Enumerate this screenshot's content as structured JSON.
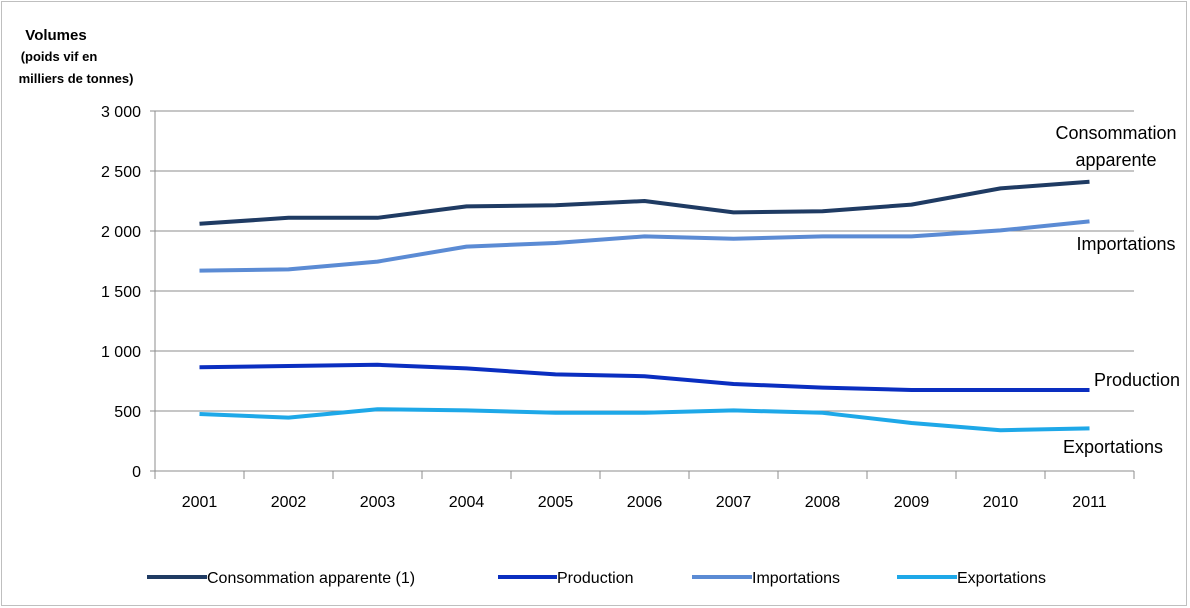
{
  "chart_data": {
    "type": "line",
    "ylabel_lines": [
      "Volumes",
      "(poids vif en",
      "milliers de tonnes)"
    ],
    "categories": [
      "2001",
      "2002",
      "2003",
      "2004",
      "2005",
      "2006",
      "2007",
      "2008",
      "2009",
      "2010",
      "2011"
    ],
    "ylim": [
      0,
      3000
    ],
    "yticks": [
      0,
      500,
      1000,
      1500,
      2000,
      2500,
      3000
    ],
    "ytick_labels": [
      "0",
      "500",
      "1 000",
      "1 500",
      "2 000",
      "2 500",
      "3 000"
    ],
    "grid": true,
    "legend_position": "bottom",
    "series": [
      {
        "name": "Consommation apparente (1)",
        "color": "#1f3b63",
        "values": [
          2060,
          2110,
          2110,
          2205,
          2215,
          2250,
          2155,
          2165,
          2220,
          2355,
          2410
        ]
      },
      {
        "name": "Production",
        "color": "#0a2ec0",
        "values": [
          865,
          875,
          885,
          855,
          805,
          790,
          725,
          695,
          675,
          675,
          675
        ]
      },
      {
        "name": "Importations",
        "color": "#5b8bd4",
        "values": [
          1670,
          1680,
          1745,
          1870,
          1900,
          1955,
          1935,
          1955,
          1955,
          2005,
          2080
        ]
      },
      {
        "name": "Exportations",
        "color": "#1ea8e8",
        "values": [
          475,
          445,
          515,
          505,
          485,
          485,
          505,
          485,
          400,
          340,
          355
        ]
      }
    ],
    "annotations": [
      {
        "series": 0,
        "lines": [
          "Consommation",
          "apparente"
        ]
      },
      {
        "series": 2,
        "lines": [
          "Importations"
        ]
      },
      {
        "series": 1,
        "lines": [
          "Production"
        ]
      },
      {
        "series": 3,
        "lines": [
          "Exportations"
        ]
      }
    ]
  }
}
